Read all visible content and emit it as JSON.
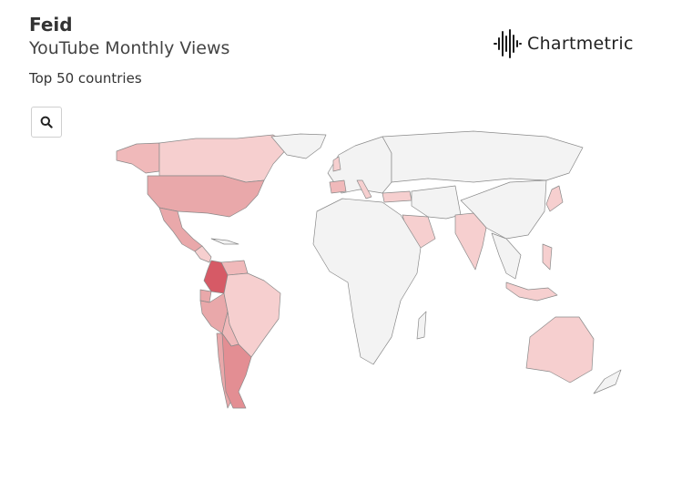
{
  "header": {
    "artist": "Feid",
    "chart_title": "YouTube Monthly Views",
    "caption": "Top 50 countries"
  },
  "brand": {
    "name": "Chartmetric",
    "logo_icon": "soundwave-logo-icon"
  },
  "toolbar": {
    "search_icon": "search-icon"
  },
  "colors": {
    "no_data": "#f3f3f3",
    "border": "#8a8a8a",
    "tier_low": "#f6cfcf",
    "tier_mid_low": "#f0b9ba",
    "tier_mid": "#e9a8aa",
    "tier_high": "#e38e93",
    "tier_top": "#d65a66"
  },
  "map": {
    "metric": "YouTube Monthly Views",
    "highlighted_countries": [
      {
        "name": "Colombia",
        "tier": "tier_top"
      },
      {
        "name": "Argentina",
        "tier": "tier_high"
      },
      {
        "name": "United States",
        "tier": "tier_mid"
      },
      {
        "name": "Mexico",
        "tier": "tier_mid"
      },
      {
        "name": "Peru",
        "tier": "tier_mid"
      },
      {
        "name": "Chile",
        "tier": "tier_mid"
      },
      {
        "name": "Ecuador",
        "tier": "tier_mid"
      },
      {
        "name": "Venezuela",
        "tier": "tier_mid_low"
      },
      {
        "name": "Bolivia",
        "tier": "tier_mid_low"
      },
      {
        "name": "Brazil",
        "tier": "tier_low"
      },
      {
        "name": "Canada",
        "tier": "tier_low"
      },
      {
        "name": "Spain",
        "tier": "tier_mid_low"
      },
      {
        "name": "Italy",
        "tier": "tier_low"
      },
      {
        "name": "United Kingdom",
        "tier": "tier_low"
      },
      {
        "name": "Turkey",
        "tier": "tier_low"
      },
      {
        "name": "Saudi Arabia",
        "tier": "tier_low"
      },
      {
        "name": "India",
        "tier": "tier_low"
      },
      {
        "name": "Japan",
        "tier": "tier_low"
      },
      {
        "name": "Philippines",
        "tier": "tier_low"
      },
      {
        "name": "Indonesia",
        "tier": "tier_low"
      },
      {
        "name": "Australia",
        "tier": "tier_low"
      }
    ]
  }
}
